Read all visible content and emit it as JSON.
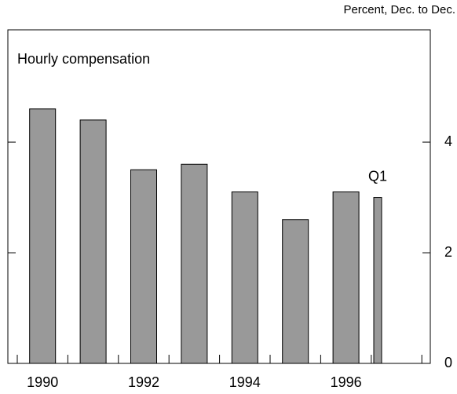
{
  "chart_data": {
    "type": "bar",
    "title": "Hourly compensation",
    "subtitle": "Percent, Dec. to Dec.",
    "categories": [
      "1990",
      null,
      "1992",
      null,
      "1994",
      null,
      "1996",
      "Q1"
    ],
    "values": [
      4.6,
      4.4,
      3.5,
      3.6,
      3.1,
      2.6,
      3.1,
      3.0
    ],
    "color": "#999999",
    "ylim": [
      0,
      6.03
    ],
    "yticks": [
      0,
      2,
      4
    ]
  }
}
